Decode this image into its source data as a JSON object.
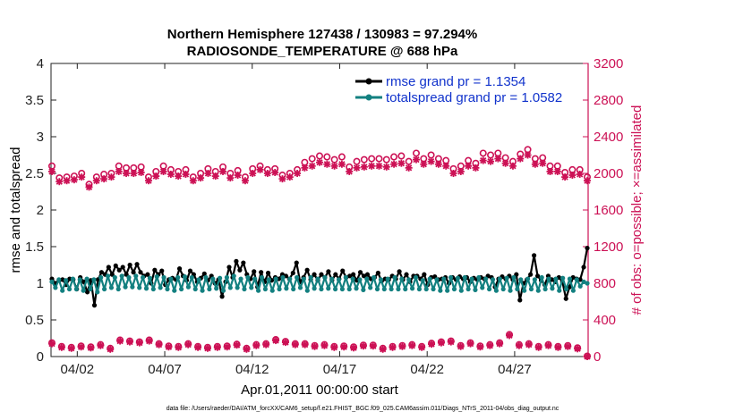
{
  "chart_data": {
    "type": "line",
    "title_line1": "Northern Hemisphere 127438 / 130983 = 97.294%",
    "title_line2": "RADIOSONDE_TEMPERATURE @ 688 hPa",
    "xlabel": "Apr.01,2011 00:00:00 start",
    "ylabel_left": "rmse and totalspread",
    "ylabel_right": "# of obs: o=possible; ×=assimilated",
    "ylim_left": [
      0,
      4
    ],
    "ylim_right": [
      0,
      3200
    ],
    "yticks_left": [
      "0",
      "0.5",
      "1",
      "1.5",
      "2",
      "2.5",
      "3",
      "3.5",
      "4"
    ],
    "yticks_right": [
      "0",
      "400",
      "800",
      "1200",
      "1600",
      "2000",
      "2400",
      "2800",
      "3200"
    ],
    "xlim_days": [
      0.5,
      31.2
    ],
    "xticks": [
      {
        "day": 2,
        "label": "04/02"
      },
      {
        "day": 7,
        "label": "04/07"
      },
      {
        "day": 12,
        "label": "04/12"
      },
      {
        "day": 17,
        "label": "04/17"
      },
      {
        "day": 22,
        "label": "04/22"
      },
      {
        "day": 27,
        "label": "04/27"
      }
    ],
    "legend": [
      {
        "label": "rmse grand pr = 1.1354",
        "color": "#000000"
      },
      {
        "label": "totalspread grand pr = 1.0582",
        "color": "#138080"
      }
    ],
    "series": [
      {
        "name": "rmse",
        "color": "#000000",
        "values": [
          1.06,
          1.0,
          1.04,
          1.05,
          0.98,
          1.06,
          1.05,
          0.92,
          1.08,
          1.02,
          0.88,
          1.04,
          0.7,
          1.05,
          1.15,
          1.12,
          1.22,
          1.12,
          1.24,
          1.18,
          1.22,
          1.12,
          1.25,
          1.15,
          1.26,
          1.15,
          1.1,
          1.12,
          1.0,
          1.18,
          1.12,
          1.17,
          0.98,
          1.05,
          1.07,
          1.05,
          1.2,
          1.1,
          1.04,
          1.17,
          1.12,
          1.02,
          1.07,
          1.13,
          1.04,
          1.1,
          1.0,
          1.05,
          0.82,
          1.02,
          1.22,
          1.08,
          1.3,
          1.18,
          1.28,
          1.12,
          1.06,
          1.16,
          0.95,
          1.15,
          1.02,
          1.14,
          1.04,
          1.08,
          1.06,
          1.12,
          1.1,
          1.06,
          1.14,
          1.28,
          1.02,
          1.08,
          1.18,
          1.05,
          1.12,
          1.04,
          1.12,
          1.08,
          1.16,
          1.04,
          1.12,
          1.06,
          1.17,
          1.08,
          1.1,
          1.12,
          1.04,
          1.15,
          1.1,
          1.12,
          1.06,
          1.08,
          1.14,
          1.03,
          1.06,
          1.05,
          1.1,
          1.06,
          1.16,
          1.05,
          1.12,
          1.02,
          1.1,
          1.1,
          1.06,
          1.12,
          0.98,
          1.08,
          1.09,
          1.05,
          1.06,
          1.08,
          1.0,
          1.08,
          1.05,
          1.09,
          1.06,
          1.08,
          1.02,
          1.07,
          1.05,
          1.08,
          1.06,
          1.1,
          1.08,
          0.95,
          1.06,
          1.09,
          1.06,
          1.1,
          1.05,
          1.12,
          0.77,
          1.0,
          1.05,
          1.12,
          1.38,
          1.1,
          1.04,
          0.98,
          1.1,
          1.05,
          1.02,
          1.08,
          1.02,
          0.79,
          0.95,
          1.08,
          1.06,
          1.05,
          1.22,
          1.48
        ]
      },
      {
        "name": "totalspread",
        "color": "#138080",
        "values": [
          1.02,
          0.94,
          1.05,
          0.9,
          1.04,
          0.92,
          1.06,
          0.92,
          1.05,
          0.9,
          1.06,
          0.92,
          1.05,
          0.88,
          1.08,
          0.92,
          1.1,
          0.94,
          1.08,
          0.92,
          1.1,
          0.95,
          1.08,
          0.95,
          1.1,
          0.94,
          1.08,
          0.93,
          1.07,
          0.92,
          1.09,
          0.94,
          1.08,
          0.92,
          1.06,
          0.9,
          1.08,
          0.92,
          1.09,
          0.95,
          1.08,
          0.92,
          1.05,
          0.9,
          1.08,
          0.92,
          1.06,
          0.93,
          1.07,
          0.9,
          1.08,
          0.94,
          1.1,
          0.94,
          1.06,
          0.92,
          1.08,
          0.94,
          1.06,
          0.9,
          1.08,
          0.92,
          1.05,
          0.9,
          1.06,
          0.92,
          1.08,
          0.93,
          1.06,
          0.92,
          1.08,
          0.94,
          1.06,
          0.9,
          1.08,
          0.93,
          1.06,
          0.92,
          1.08,
          0.93,
          1.06,
          0.92,
          1.05,
          0.92,
          1.08,
          0.92,
          1.06,
          0.93,
          1.05,
          0.91,
          1.06,
          0.94,
          1.08,
          0.92,
          1.05,
          0.92,
          1.06,
          0.92,
          1.08,
          0.92,
          1.06,
          0.92,
          1.05,
          0.93,
          1.08,
          0.92,
          1.04,
          0.92,
          1.06,
          0.92,
          1.05,
          0.9,
          1.06,
          0.9,
          1.08,
          0.92,
          1.07,
          0.9,
          1.08,
          0.92,
          1.06,
          0.91,
          1.08,
          0.94,
          1.06,
          0.92,
          1.05,
          0.9,
          1.06,
          0.92,
          1.07,
          0.9,
          1.08,
          0.92,
          1.05,
          0.9,
          1.06,
          0.92,
          1.05,
          0.9,
          1.08,
          0.92,
          1.06,
          0.93,
          1.06,
          0.9,
          1.07,
          0.92,
          1.06,
          0.9,
          1.05,
          0.96,
          1.02,
          1.0
        ]
      },
      {
        "name": "obs_possible",
        "color": "#cc1155",
        "marker": "circle",
        "values": [
          2080,
          1950,
          1960,
          1970,
          2000,
          1880,
          1960,
          1990,
          2000,
          2080,
          2060,
          2060,
          2070,
          1960,
          2020,
          2080,
          2040,
          2020,
          2040,
          1960,
          2000,
          2050,
          2020,
          2070,
          2000,
          2030,
          1960,
          2050,
          2080,
          2040,
          2050,
          1980,
          2000,
          2040,
          2120,
          2160,
          2190,
          2180,
          2150,
          2180,
          2070,
          2130,
          2150,
          2160,
          2160,
          2150,
          2180,
          2190,
          2130,
          2220,
          2160,
          2200,
          2160,
          2140,
          2050,
          2080,
          2140,
          2110,
          2220,
          2200,
          2220,
          2170,
          2130,
          2210,
          2260,
          2160,
          2170,
          2080,
          2080,
          2010,
          2040,
          2040,
          1960
        ]
      },
      {
        "name": "obs_assimilated",
        "color": "#cc1155",
        "marker": "asterisk",
        "values": [
          2020,
          1910,
          1920,
          1930,
          1960,
          1850,
          1920,
          1940,
          1960,
          2020,
          2000,
          2000,
          2010,
          1920,
          1970,
          2020,
          1990,
          1970,
          1990,
          1920,
          1950,
          2000,
          1970,
          2020,
          1950,
          1980,
          1920,
          2000,
          2040,
          2000,
          2010,
          1940,
          1960,
          2000,
          2060,
          2080,
          2120,
          2100,
          2080,
          2100,
          2020,
          2060,
          2070,
          2080,
          2080,
          2070,
          2100,
          2110,
          2060,
          2150,
          2100,
          2130,
          2100,
          2080,
          2000,
          2020,
          2080,
          2060,
          2140,
          2130,
          2160,
          2110,
          2080,
          2160,
          2200,
          2100,
          2110,
          2020,
          2020,
          1960,
          1980,
          1990,
          1920
        ]
      },
      {
        "name": "obs_low_possible",
        "color": "#cc1155",
        "marker": "circle",
        "values": [
          150,
          110,
          100,
          115,
          105,
          130,
          90,
          180,
          170,
          160,
          180,
          140,
          115,
          110,
          140,
          110,
          100,
          110,
          115,
          135,
          90,
          130,
          140,
          185,
          165,
          140,
          140,
          120,
          130,
          110,
          115,
          105,
          125,
          125,
          90,
          110,
          120,
          130,
          110,
          145,
          160,
          170,
          120,
          150,
          115,
          130,
          150,
          240,
          130,
          140,
          110,
          130,
          110,
          120,
          95,
          5
        ]
      },
      {
        "name": "obs_low_assimilated",
        "color": "#cc1155",
        "marker": "asterisk",
        "values": [
          140,
          100,
          90,
          105,
          95,
          120,
          80,
          170,
          160,
          150,
          170,
          130,
          105,
          100,
          130,
          100,
          90,
          100,
          105,
          125,
          80,
          120,
          130,
          175,
          155,
          130,
          130,
          110,
          120,
          100,
          105,
          95,
          115,
          115,
          80,
          100,
          110,
          120,
          100,
          135,
          150,
          160,
          110,
          140,
          105,
          120,
          140,
          230,
          120,
          130,
          100,
          120,
          100,
          110,
          85,
          0
        ]
      }
    ]
  },
  "footer": "data file: /Users/raeder/DAI/ATM_forcXX/CAM6_setup/f.e21.FHIST_BGC.f09_025.CAM6assim.011/Diags_NTrS_2011-04/obs_diag_output.nc"
}
